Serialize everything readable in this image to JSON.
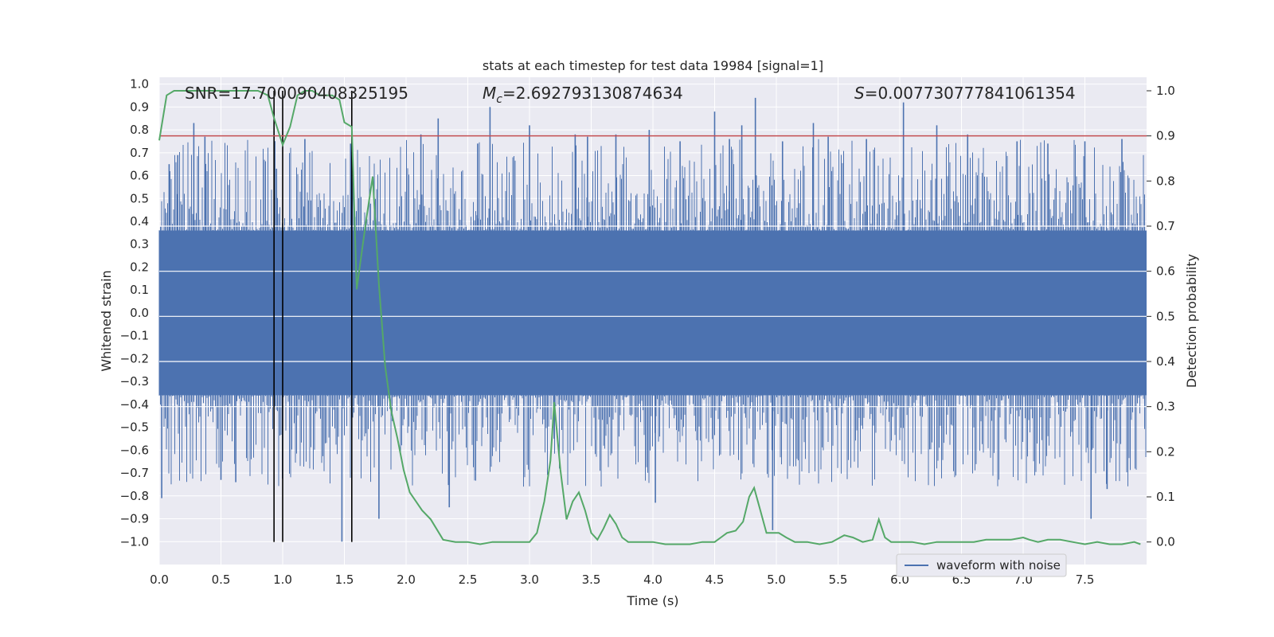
{
  "chart_data": {
    "type": "line",
    "title": "stats at each timestep for test data 19984 [signal=1]",
    "xlabel": "Time (s)",
    "ylabel_left": "Whitened strain",
    "ylabel_right": "Detection probability",
    "xlim": [
      0,
      8
    ],
    "ylim_left": [
      -1.1,
      1.03
    ],
    "ylim_right": [
      -0.05,
      1.03
    ],
    "x_ticks": [
      "0.0",
      "0.5",
      "1.0",
      "1.5",
      "2.0",
      "2.5",
      "3.0",
      "3.5",
      "4.0",
      "4.5",
      "5.0",
      "5.5",
      "6.0",
      "6.5",
      "7.0",
      "7.5"
    ],
    "y_left_ticks": [
      "1.0",
      "0.9",
      "0.8",
      "0.7",
      "0.6",
      "0.5",
      "0.4",
      "0.3",
      "0.2",
      "0.1",
      "0.0",
      "-0.1",
      "-0.2",
      "-0.3",
      "-0.4",
      "-0.5",
      "-0.6",
      "-0.7",
      "-0.8",
      "-0.9",
      "-1.0"
    ],
    "y_right_ticks": [
      "1.0",
      "0.9",
      "0.8",
      "0.7",
      "0.6",
      "0.5",
      "0.4",
      "0.3",
      "0.2",
      "0.1",
      "0.0"
    ],
    "grid": true,
    "legend_position": "lower-right",
    "annotations": {
      "snr": "SNR=17.700090408325195",
      "mc_symbol": "M",
      "mc_sub": "c",
      "mc_value": "=2.692793130874634",
      "s_symbol": "S",
      "s_value": "=0.007730777841061354"
    },
    "threshold": 0.9,
    "vertical_lines": [
      0.93,
      1.0,
      1.56
    ],
    "series": [
      {
        "name": "waveform with noise",
        "axis": "left",
        "color": "#4c72b0",
        "style": "dense noise envelope",
        "core_amplitude": 0.36,
        "notable_peaks": [
          {
            "x": 0.02,
            "y": -0.81
          },
          {
            "x": 0.08,
            "y": 0.65
          },
          {
            "x": 0.15,
            "y": 0.69
          },
          {
            "x": 0.28,
            "y": 0.83
          },
          {
            "x": 0.37,
            "y": 0.77
          },
          {
            "x": 0.5,
            "y": -0.73
          },
          {
            "x": 0.62,
            "y": -0.74
          },
          {
            "x": 0.95,
            "y": 0.63
          },
          {
            "x": 1.18,
            "y": 0.76
          },
          {
            "x": 1.48,
            "y": -1.0
          },
          {
            "x": 1.55,
            "y": 0.74
          },
          {
            "x": 1.78,
            "y": -0.9
          },
          {
            "x": 2.12,
            "y": 0.78
          },
          {
            "x": 2.26,
            "y": 0.85
          },
          {
            "x": 2.35,
            "y": -0.85
          },
          {
            "x": 2.58,
            "y": 0.74
          },
          {
            "x": 2.68,
            "y": 0.9
          },
          {
            "x": 3.0,
            "y": 0.82
          },
          {
            "x": 3.2,
            "y": -0.55
          },
          {
            "x": 3.37,
            "y": 0.78
          },
          {
            "x": 3.47,
            "y": 0.77
          },
          {
            "x": 3.7,
            "y": 0.78
          },
          {
            "x": 3.97,
            "y": 0.8
          },
          {
            "x": 4.02,
            "y": -0.83
          },
          {
            "x": 4.22,
            "y": 0.75
          },
          {
            "x": 4.5,
            "y": 0.88
          },
          {
            "x": 4.62,
            "y": 0.76
          },
          {
            "x": 4.72,
            "y": 0.82
          },
          {
            "x": 4.83,
            "y": 0.94
          },
          {
            "x": 4.97,
            "y": -0.95
          },
          {
            "x": 5.05,
            "y": 0.75
          },
          {
            "x": 5.3,
            "y": 0.83
          },
          {
            "x": 5.42,
            "y": 0.77
          },
          {
            "x": 5.73,
            "y": 0.76
          },
          {
            "x": 6.03,
            "y": 0.92
          },
          {
            "x": 6.3,
            "y": 0.82
          },
          {
            "x": 6.55,
            "y": 0.78
          },
          {
            "x": 6.95,
            "y": 0.75
          },
          {
            "x": 7.2,
            "y": 0.74
          },
          {
            "x": 7.5,
            "y": 0.75
          },
          {
            "x": 7.55,
            "y": -0.9
          },
          {
            "x": 7.68,
            "y": -0.77
          },
          {
            "x": 7.8,
            "y": 0.76
          }
        ]
      },
      {
        "name": "detection probability",
        "axis": "right",
        "color": "#55a868",
        "x": [
          0.0,
          0.06,
          0.12,
          0.2,
          0.3,
          0.4,
          0.5,
          0.6,
          0.7,
          0.8,
          0.88,
          0.93,
          1.0,
          1.06,
          1.12,
          1.18,
          1.24,
          1.3,
          1.35,
          1.4,
          1.46,
          1.5,
          1.56,
          1.6,
          1.63,
          1.68,
          1.73,
          1.78,
          1.83,
          1.88,
          1.93,
          1.98,
          2.03,
          2.08,
          2.13,
          2.2,
          2.3,
          2.4,
          2.5,
          2.6,
          2.7,
          2.8,
          2.9,
          3.0,
          3.06,
          3.12,
          3.17,
          3.2,
          3.25,
          3.3,
          3.35,
          3.4,
          3.45,
          3.5,
          3.55,
          3.6,
          3.65,
          3.7,
          3.75,
          3.8,
          3.9,
          4.0,
          4.1,
          4.2,
          4.3,
          4.4,
          4.5,
          4.55,
          4.6,
          4.67,
          4.73,
          4.78,
          4.82,
          4.87,
          4.92,
          4.97,
          5.02,
          5.08,
          5.15,
          5.25,
          5.35,
          5.45,
          5.55,
          5.62,
          5.7,
          5.78,
          5.83,
          5.88,
          5.93,
          6.0,
          6.1,
          6.2,
          6.3,
          6.4,
          6.5,
          6.6,
          6.7,
          6.8,
          6.9,
          7.0,
          7.05,
          7.12,
          7.2,
          7.3,
          7.4,
          7.5,
          7.6,
          7.7,
          7.8,
          7.9,
          7.95
        ],
        "y": [
          0.89,
          0.99,
          1.0,
          1.0,
          1.0,
          1.0,
          1.0,
          1.0,
          1.0,
          1.0,
          0.99,
          0.94,
          0.88,
          0.92,
          0.99,
          1.0,
          1.0,
          0.99,
          0.99,
          0.99,
          0.98,
          0.93,
          0.92,
          0.56,
          0.62,
          0.72,
          0.81,
          0.57,
          0.39,
          0.29,
          0.23,
          0.16,
          0.11,
          0.09,
          0.07,
          0.05,
          0.005,
          0.0,
          0.0,
          -0.005,
          0.0,
          0.0,
          0.0,
          0.0,
          0.02,
          0.09,
          0.18,
          0.31,
          0.16,
          0.05,
          0.09,
          0.11,
          0.07,
          0.02,
          0.005,
          0.03,
          0.06,
          0.04,
          0.01,
          0.0,
          0.0,
          0.0,
          -0.005,
          -0.005,
          -0.005,
          0.0,
          0.0,
          0.01,
          0.02,
          0.025,
          0.045,
          0.1,
          0.12,
          0.07,
          0.02,
          0.02,
          0.02,
          0.01,
          0.0,
          0.0,
          -0.005,
          0.0,
          0.015,
          0.01,
          0.0,
          0.005,
          0.05,
          0.01,
          0.0,
          0.0,
          0.0,
          -0.005,
          0.0,
          0.0,
          0.0,
          0.0,
          0.005,
          0.005,
          0.005,
          0.01,
          0.005,
          0.0,
          0.005,
          0.005,
          0.0,
          -0.005,
          0.0,
          -0.005,
          -0.005,
          0.0,
          -0.005
        ]
      },
      {
        "name": "threshold",
        "axis": "right",
        "color": "#c44e52",
        "y_const": 0.9
      }
    ]
  }
}
